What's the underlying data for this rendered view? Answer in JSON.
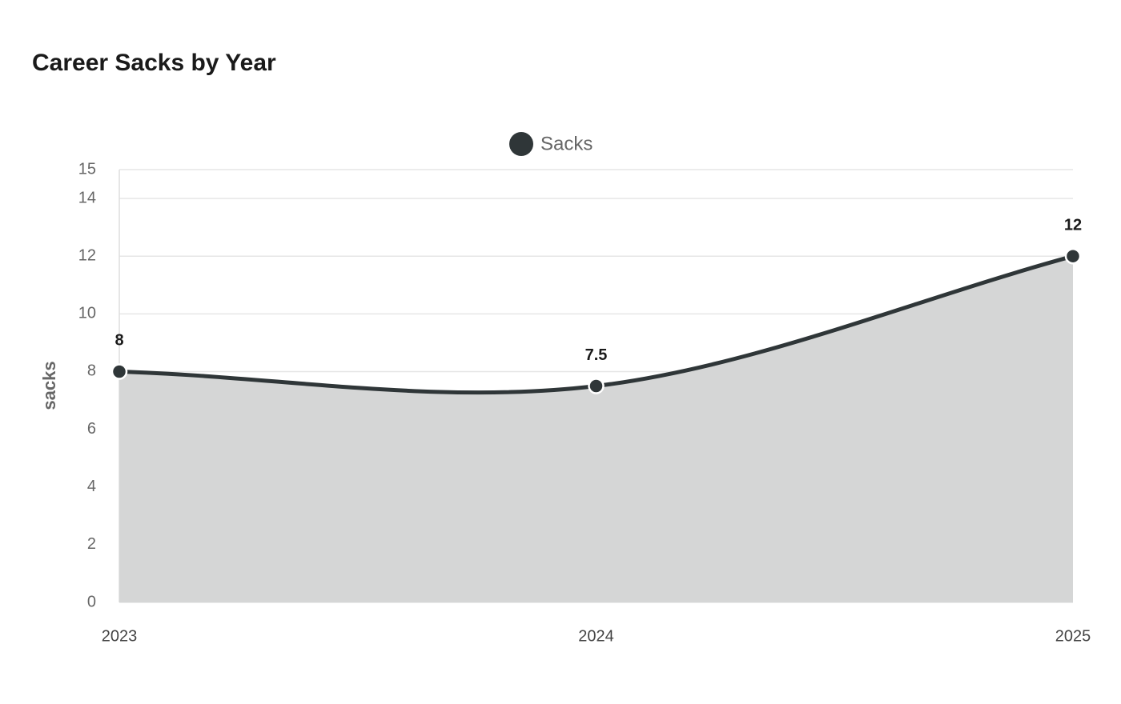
{
  "chart_data": {
    "type": "area",
    "title": "Career Sacks by Year",
    "y_label": "sacks",
    "categories": [
      "2023",
      "2024",
      "2025"
    ],
    "series": [
      {
        "name": "Sacks",
        "color": "#2f3638",
        "fill": "#d5d6d6",
        "values": [
          8,
          7.5,
          12
        ]
      }
    ],
    "ylim": [
      0,
      15
    ],
    "yticks": [
      0,
      2,
      4,
      6,
      8,
      10,
      12,
      14,
      15
    ],
    "grid": true,
    "legend": "top"
  }
}
